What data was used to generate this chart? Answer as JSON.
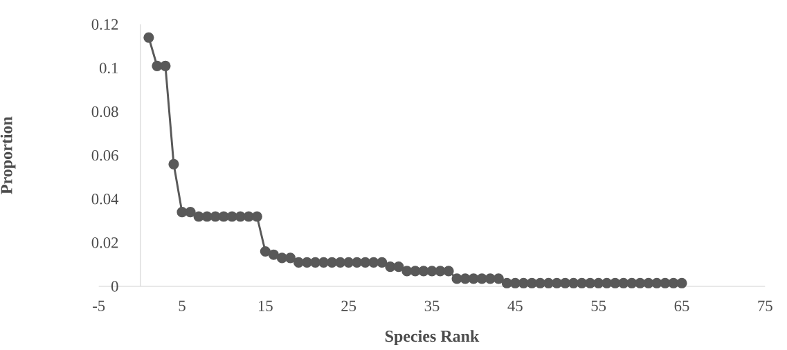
{
  "chart_data": {
    "type": "line",
    "xlabel": "Species Rank",
    "ylabel": "Proportion",
    "x": [
      1,
      2,
      3,
      4,
      5,
      6,
      7,
      8,
      9,
      10,
      11,
      12,
      13,
      14,
      15,
      16,
      17,
      18,
      19,
      20,
      21,
      22,
      23,
      24,
      25,
      26,
      27,
      28,
      29,
      30,
      31,
      32,
      33,
      34,
      35,
      36,
      37,
      38,
      39,
      40,
      41,
      42,
      43,
      44,
      45,
      46,
      47,
      48,
      49,
      50,
      51,
      52,
      53,
      54,
      55,
      56,
      57,
      58,
      59,
      60,
      61,
      62,
      63,
      64,
      65
    ],
    "series": [
      {
        "color": "#595959",
        "values": [
          0.114,
          0.101,
          0.101,
          0.056,
          0.034,
          0.034,
          0.032,
          0.032,
          0.032,
          0.032,
          0.032,
          0.032,
          0.032,
          0.032,
          0.016,
          0.0145,
          0.013,
          0.013,
          0.011,
          0.011,
          0.011,
          0.011,
          0.011,
          0.011,
          0.011,
          0.011,
          0.011,
          0.011,
          0.011,
          0.009,
          0.009,
          0.007,
          0.007,
          0.007,
          0.007,
          0.007,
          0.007,
          0.0035,
          0.0035,
          0.0035,
          0.0035,
          0.0035,
          0.0035,
          0.0015,
          0.0015,
          0.0015,
          0.0015,
          0.0015,
          0.0015,
          0.0015,
          0.0015,
          0.0015,
          0.0015,
          0.0015,
          0.0015,
          0.0015,
          0.0015,
          0.0015,
          0.0015,
          0.0015,
          0.0015,
          0.0015,
          0.0015,
          0.0015,
          0.0015
        ]
      }
    ],
    "xlim": [
      -5,
      75
    ],
    "ylim": [
      0,
      0.12
    ],
    "xticks": [
      -5,
      5,
      15,
      25,
      35,
      45,
      55,
      65,
      75
    ],
    "yticks": [
      0,
      0.02,
      0.04,
      0.06,
      0.08,
      0.1,
      0.12
    ],
    "marker": "circle",
    "line_style": "solid",
    "grid": false
  }
}
